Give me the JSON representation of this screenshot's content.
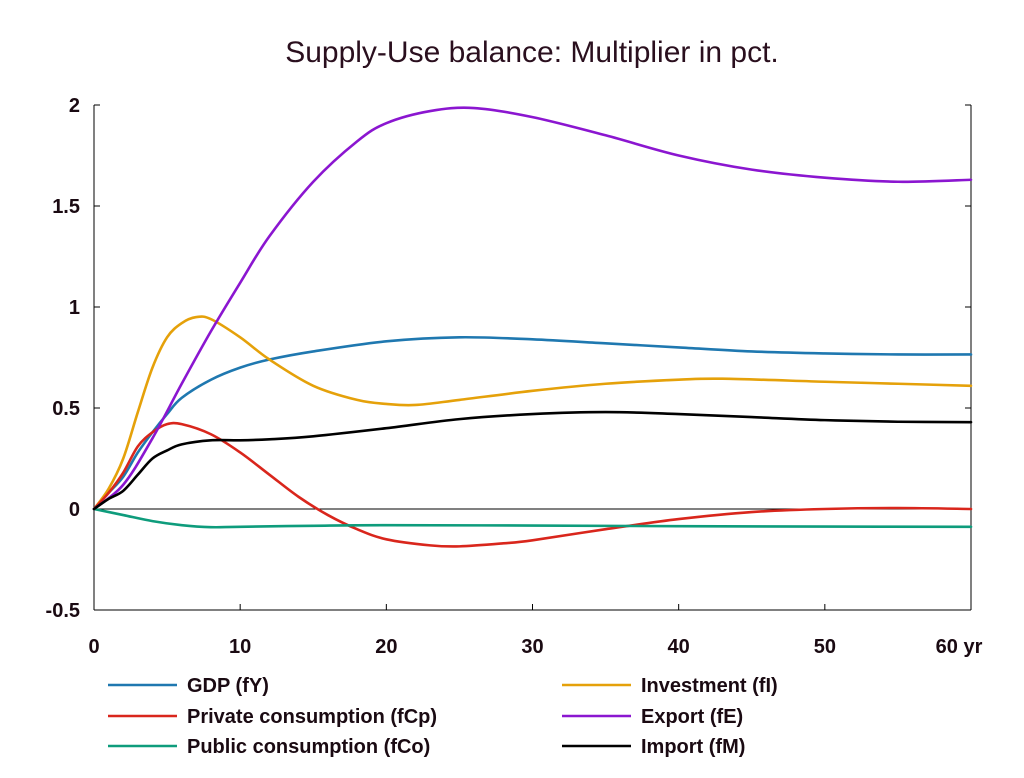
{
  "chart_data": {
    "type": "line",
    "title": "Supply-Use balance: Multiplier in pct.",
    "xlabel": "",
    "ylabel": "",
    "x_unit_label": "yr",
    "xlim": [
      0,
      60
    ],
    "ylim": [
      -0.5,
      2
    ],
    "x_ticks": [
      0,
      10,
      20,
      30,
      40,
      50,
      60
    ],
    "x_tick_labels": [
      "0",
      "10",
      "20",
      "30",
      "40",
      "50",
      "60"
    ],
    "y_ticks": [
      -0.5,
      0,
      0.5,
      1,
      1.5,
      2
    ],
    "y_tick_labels": [
      "-0.5",
      "0",
      "0.5",
      "1",
      "1.5",
      "2"
    ],
    "grid": false,
    "zero_line": true,
    "legend_position": "bottom",
    "series": [
      {
        "name": "GDP (fY)",
        "color": "#1f78b0",
        "points": [
          [
            0,
            0
          ],
          [
            1,
            0.08
          ],
          [
            2,
            0.16
          ],
          [
            3,
            0.28
          ],
          [
            4,
            0.38
          ],
          [
            5,
            0.47
          ],
          [
            6,
            0.55
          ],
          [
            8,
            0.64
          ],
          [
            10,
            0.7
          ],
          [
            12,
            0.74
          ],
          [
            15,
            0.78
          ],
          [
            20,
            0.83
          ],
          [
            25,
            0.85
          ],
          [
            30,
            0.84
          ],
          [
            35,
            0.82
          ],
          [
            40,
            0.8
          ],
          [
            45,
            0.78
          ],
          [
            50,
            0.77
          ],
          [
            55,
            0.765
          ],
          [
            60,
            0.765
          ]
        ]
      },
      {
        "name": "Investment (fI)",
        "color": "#e5a10a",
        "points": [
          [
            0,
            0
          ],
          [
            1,
            0.1
          ],
          [
            2,
            0.25
          ],
          [
            3,
            0.48
          ],
          [
            4,
            0.7
          ],
          [
            5,
            0.85
          ],
          [
            6,
            0.92
          ],
          [
            7,
            0.95
          ],
          [
            8,
            0.94
          ],
          [
            10,
            0.85
          ],
          [
            12,
            0.74
          ],
          [
            15,
            0.61
          ],
          [
            18,
            0.54
          ],
          [
            20,
            0.52
          ],
          [
            22,
            0.515
          ],
          [
            25,
            0.54
          ],
          [
            30,
            0.585
          ],
          [
            35,
            0.62
          ],
          [
            40,
            0.64
          ],
          [
            43,
            0.645
          ],
          [
            50,
            0.63
          ],
          [
            55,
            0.62
          ],
          [
            60,
            0.61
          ]
        ]
      },
      {
        "name": "Private consumption (fCp)",
        "color": "#d9261c",
        "points": [
          [
            0,
            0
          ],
          [
            1,
            0.08
          ],
          [
            2,
            0.18
          ],
          [
            3,
            0.31
          ],
          [
            4,
            0.38
          ],
          [
            5,
            0.42
          ],
          [
            6,
            0.42
          ],
          [
            8,
            0.37
          ],
          [
            10,
            0.28
          ],
          [
            12,
            0.17
          ],
          [
            14,
            0.06
          ],
          [
            16,
            -0.03
          ],
          [
            18,
            -0.1
          ],
          [
            20,
            -0.15
          ],
          [
            23,
            -0.18
          ],
          [
            25,
            -0.185
          ],
          [
            28,
            -0.17
          ],
          [
            30,
            -0.155
          ],
          [
            35,
            -0.1
          ],
          [
            40,
            -0.05
          ],
          [
            45,
            -0.015
          ],
          [
            50,
            0
          ],
          [
            55,
            0.005
          ],
          [
            60,
            0
          ]
        ]
      },
      {
        "name": "Export (fE)",
        "color": "#8b16d0",
        "points": [
          [
            0,
            0
          ],
          [
            2,
            0.12
          ],
          [
            4,
            0.35
          ],
          [
            6,
            0.62
          ],
          [
            8,
            0.88
          ],
          [
            10,
            1.12
          ],
          [
            12,
            1.35
          ],
          [
            15,
            1.62
          ],
          [
            18,
            1.82
          ],
          [
            20,
            1.91
          ],
          [
            23,
            1.97
          ],
          [
            26,
            1.985
          ],
          [
            30,
            1.94
          ],
          [
            35,
            1.85
          ],
          [
            40,
            1.75
          ],
          [
            45,
            1.68
          ],
          [
            50,
            1.64
          ],
          [
            55,
            1.62
          ],
          [
            60,
            1.63
          ]
        ]
      },
      {
        "name": "Public consumption (fCo)",
        "color": "#0e9c7c",
        "points": [
          [
            0,
            0
          ],
          [
            2,
            -0.03
          ],
          [
            4,
            -0.06
          ],
          [
            6,
            -0.08
          ],
          [
            8,
            -0.09
          ],
          [
            10,
            -0.088
          ],
          [
            15,
            -0.083
          ],
          [
            20,
            -0.08
          ],
          [
            30,
            -0.082
          ],
          [
            40,
            -0.085
          ],
          [
            50,
            -0.087
          ],
          [
            60,
            -0.088
          ]
        ]
      },
      {
        "name": "Import (fM)",
        "color": "#000000",
        "points": [
          [
            0,
            0
          ],
          [
            1,
            0.05
          ],
          [
            2,
            0.09
          ],
          [
            3,
            0.17
          ],
          [
            4,
            0.25
          ],
          [
            5,
            0.29
          ],
          [
            6,
            0.32
          ],
          [
            8,
            0.34
          ],
          [
            10,
            0.34
          ],
          [
            12,
            0.345
          ],
          [
            15,
            0.36
          ],
          [
            20,
            0.4
          ],
          [
            25,
            0.445
          ],
          [
            30,
            0.47
          ],
          [
            35,
            0.48
          ],
          [
            40,
            0.47
          ],
          [
            45,
            0.455
          ],
          [
            50,
            0.44
          ],
          [
            55,
            0.432
          ],
          [
            60,
            0.43
          ]
        ]
      }
    ],
    "legend": {
      "left": [
        "GDP (fY)",
        "Private consumption (fCp)",
        "Public consumption (fCo)"
      ],
      "right": [
        "Investment (fI)",
        "Export (fE)",
        "Import (fM)"
      ]
    }
  }
}
